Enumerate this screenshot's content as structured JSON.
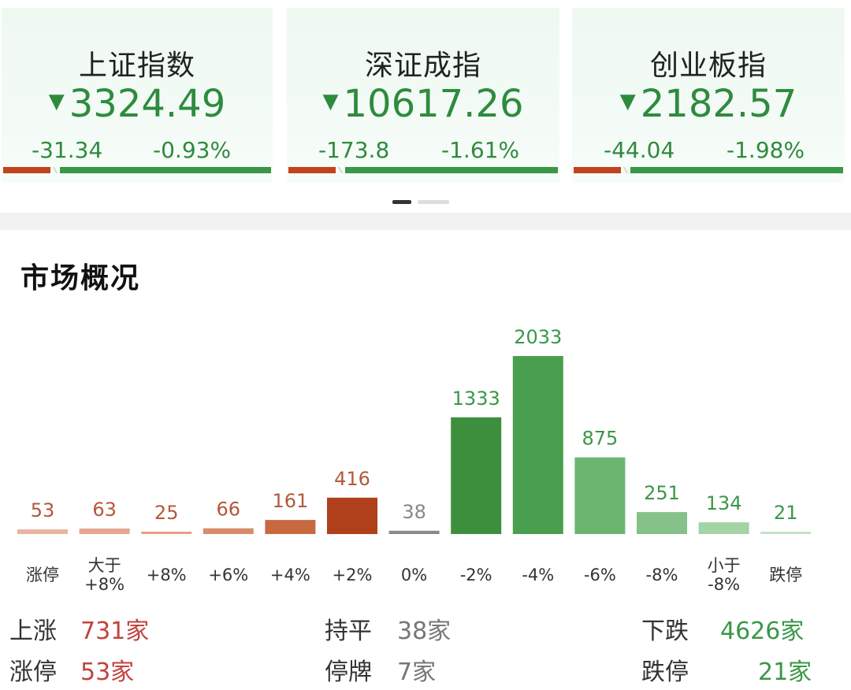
{
  "indices": [
    {
      "name": "上证指数",
      "value": "3324.49",
      "change": "-31.34",
      "percent": "-0.93%",
      "arrow": "▼"
    },
    {
      "name": "深证成指",
      "value": "10617.26",
      "change": "-173.8",
      "percent": "-1.61%",
      "arrow": "▼"
    },
    {
      "name": "创业板指",
      "value": "2182.57",
      "change": "-44.04",
      "percent": "-1.98%",
      "arrow": "▼"
    }
  ],
  "section": {
    "title": "市场概况"
  },
  "chart_data": {
    "type": "bar",
    "categories": [
      "涨停",
      "大于+8%",
      "+8%",
      "+6%",
      "+4%",
      "+2%",
      "0%",
      "-2%",
      "-4%",
      "-6%",
      "-8%",
      "小于-8%",
      "跌停"
    ],
    "category_lines": [
      [
        "涨停"
      ],
      [
        "大于",
        "+8%"
      ],
      [
        "+8%"
      ],
      [
        "+6%"
      ],
      [
        "+4%"
      ],
      [
        "+2%"
      ],
      [
        "0%"
      ],
      [
        "-2%"
      ],
      [
        "-4%"
      ],
      [
        "-6%"
      ],
      [
        "-8%"
      ],
      [
        "小于",
        "-8%"
      ],
      [
        "跌停"
      ]
    ],
    "values": [
      53,
      63,
      25,
      66,
      161,
      416,
      38,
      1333,
      2033,
      875,
      251,
      134,
      21
    ],
    "colors": [
      "#e8b5a0",
      "#e5a78d",
      "#e3a286",
      "#d98c6b",
      "#c9693f",
      "#b0401c",
      "#8a8a8a",
      "#3d8f3e",
      "#4a9f4e",
      "#6cb570",
      "#85c289",
      "#a4d3a6",
      "#c3e3c5"
    ],
    "label_colors": [
      "#b4583a",
      "#b4583a",
      "#b4583a",
      "#b4583a",
      "#b4583a",
      "#b4583a",
      "#888888",
      "#3a9748",
      "#3a9748",
      "#3a9748",
      "#3a9748",
      "#3a9748",
      "#3a9748"
    ]
  },
  "summary": {
    "up_label": "上涨",
    "up_value": "731家",
    "limit_up_label": "涨停",
    "limit_up_value": "53家",
    "flat_label": "持平",
    "flat_value": "38家",
    "suspended_label": "停牌",
    "suspended_value": "7家",
    "down_label": "下跌",
    "down_value": "4626家",
    "limit_down_label": "跌停",
    "limit_down_value": "21家"
  }
}
